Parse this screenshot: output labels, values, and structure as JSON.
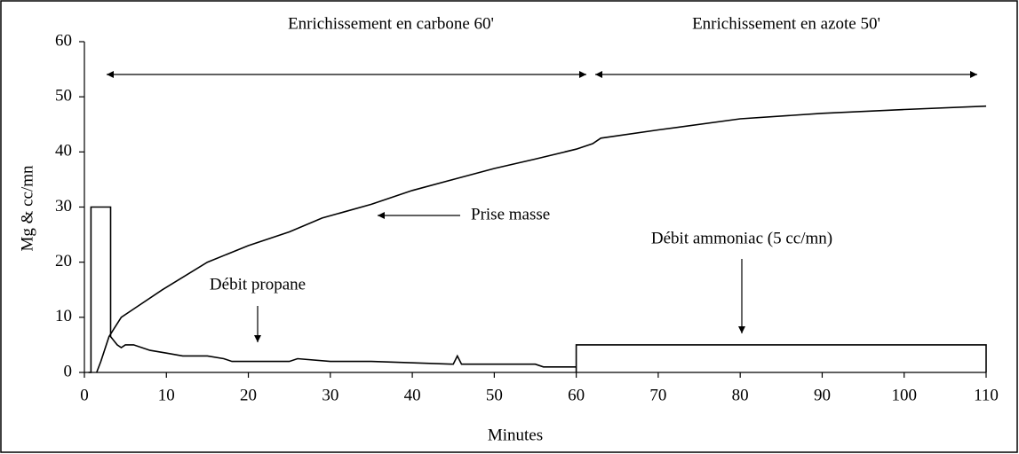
{
  "chart_data": {
    "type": "line",
    "xlabel": "Minutes",
    "ylabel": "Mg & cc/mn",
    "xlim": [
      0,
      110
    ],
    "xticks": [
      0,
      10,
      20,
      30,
      40,
      50,
      60,
      70,
      80,
      90,
      100,
      110
    ],
    "ylim": [
      0,
      60
    ],
    "yticks": [
      0,
      10,
      20,
      30,
      40,
      50,
      60
    ],
    "grid": false,
    "series": [
      {
        "color": "#000000",
        "x": [
          1.5,
          2,
          3,
          4.5,
          6,
          9.5,
          15,
          20,
          25,
          29,
          35,
          40,
          45,
          50,
          55,
          60,
          62,
          63,
          70,
          80,
          90,
          100,
          110
        ],
        "values": [
          0,
          2,
          6.5,
          10,
          11.5,
          15,
          20,
          23,
          25.5,
          28,
          30.5,
          33,
          35,
          37,
          38.7,
          40.5,
          41.5,
          42.5,
          44,
          46,
          47,
          47.7,
          48.3
        ]
      },
      {
        "color": "#000000",
        "x": [
          0.5,
          0.8,
          0.8,
          3.2,
          3.2,
          4,
          4.5,
          5,
          6,
          8,
          10,
          12,
          15,
          17,
          18,
          20,
          25,
          26,
          30,
          35,
          45,
          45.5,
          46,
          50,
          55,
          56,
          60
        ],
        "values": [
          0,
          0,
          30,
          30,
          6.5,
          5,
          4.5,
          5,
          5,
          4,
          3.5,
          3,
          3,
          2.5,
          2,
          2,
          2,
          2.5,
          2,
          2,
          1.5,
          3,
          1.5,
          1.5,
          1.5,
          1,
          1
        ]
      },
      {
        "color": "#000000",
        "x": [
          60,
          60,
          110,
          110
        ],
        "values": [
          0,
          5,
          5,
          0
        ]
      }
    ],
    "annotations": [
      "Enrichissement en carbone 60'",
      "Enrichissement en azote 50'",
      "Prise masse",
      "Débit propane",
      "Débit ammoniac (5 cc/mn)"
    ]
  }
}
